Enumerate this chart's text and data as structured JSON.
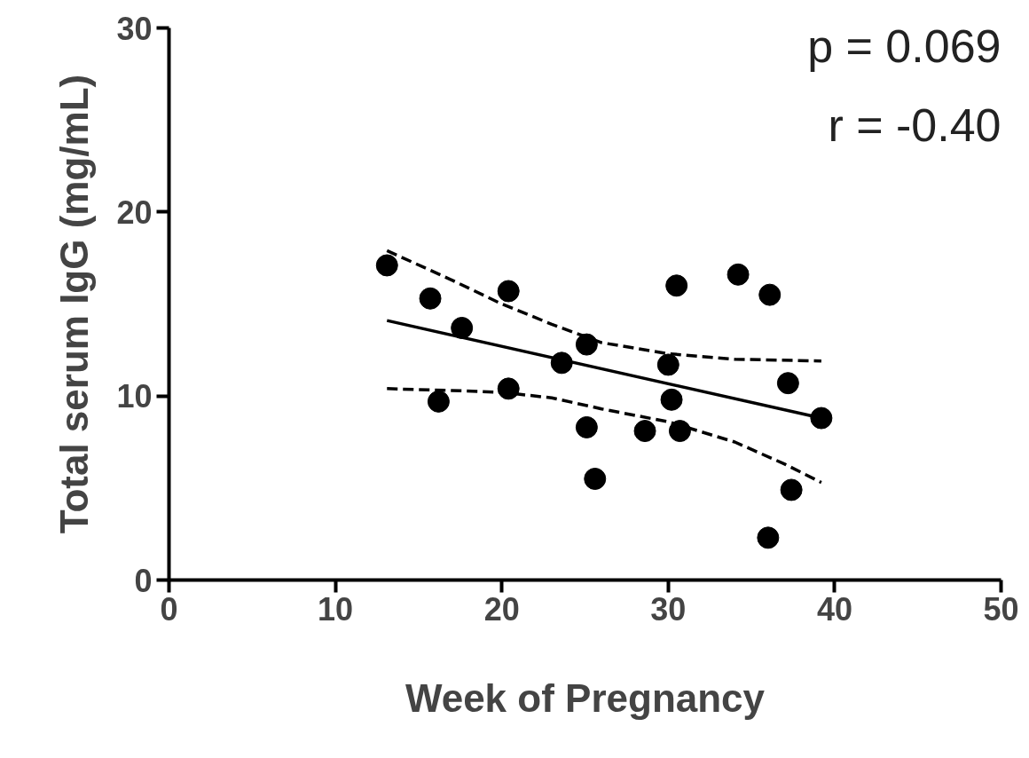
{
  "chart_data": {
    "type": "scatter",
    "xlabel": "Week of Pregnancy",
    "ylabel": "Total serum IgG (mg/mL)",
    "xlim": [
      0,
      50
    ],
    "ylim": [
      0,
      30
    ],
    "xticks": [
      0,
      10,
      20,
      30,
      40,
      50
    ],
    "yticks": [
      0,
      10,
      20,
      30
    ],
    "grid": false,
    "marker": "circle",
    "annotations": [
      "p = 0.069",
      "r = -0.40"
    ],
    "series": [
      {
        "color": "#000000",
        "x": [
          13.1,
          15.7,
          17.6,
          16.2,
          20.4,
          20.4,
          23.6,
          25.1,
          25.1,
          25.6,
          28.6,
          30.0,
          30.2,
          30.5,
          30.7,
          34.2,
          36.1,
          36.0,
          37.2,
          37.4,
          39.2
        ],
        "values": [
          17.1,
          15.3,
          13.7,
          9.7,
          15.7,
          10.4,
          11.8,
          12.8,
          8.3,
          5.5,
          8.1,
          11.7,
          9.8,
          16.0,
          8.1,
          16.6,
          15.5,
          2.3,
          10.7,
          4.9,
          8.8
        ]
      },
      {
        "type": "line",
        "color": "#000000",
        "line_style": "solid",
        "marker": "none",
        "x": [
          13.1,
          39.2
        ],
        "values": [
          14.1,
          8.8
        ]
      },
      {
        "type": "line",
        "color": "#000000",
        "line_style": "dashed",
        "marker": "none",
        "x": [
          13.1,
          17,
          20,
          23,
          26,
          30,
          34,
          39.2
        ],
        "values": [
          17.9,
          16.3,
          15.0,
          13.9,
          12.9,
          12.3,
          12.0,
          11.9
        ]
      },
      {
        "type": "line",
        "color": "#000000",
        "line_style": "dashed",
        "marker": "none",
        "x": [
          13.1,
          17,
          20,
          23,
          26,
          30,
          34,
          37,
          39.2
        ],
        "values": [
          10.4,
          10.3,
          10.2,
          9.9,
          9.3,
          8.6,
          7.5,
          6.3,
          5.3
        ]
      }
    ]
  }
}
